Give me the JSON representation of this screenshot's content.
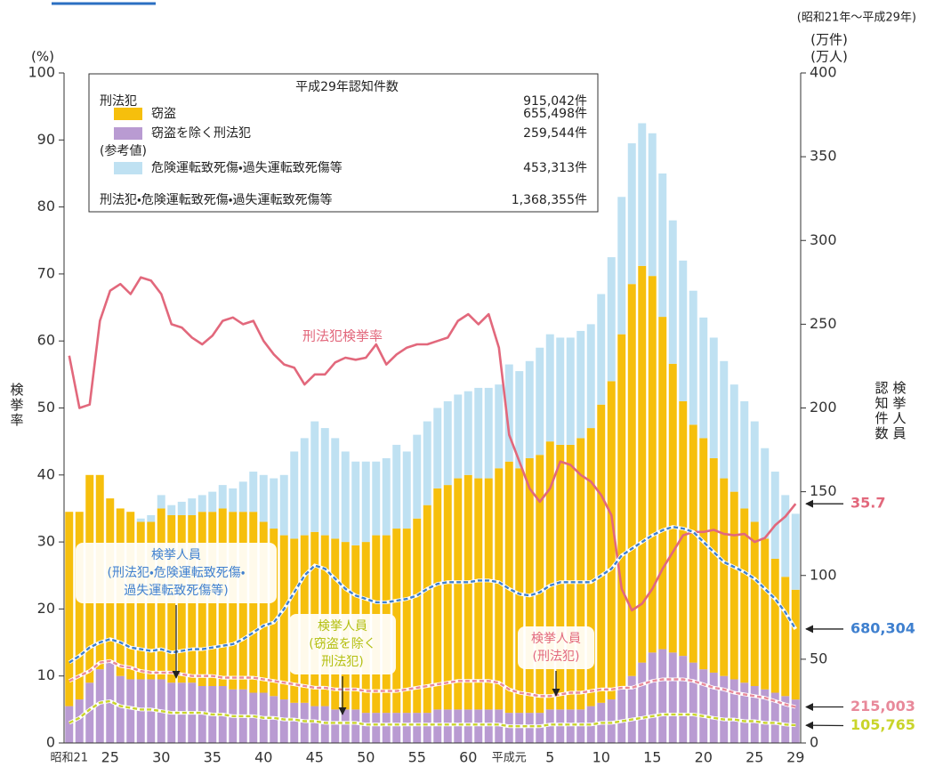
{
  "chart_data": {
    "type": "bar",
    "stacked": true,
    "period": "(昭和21年〜平成29年)",
    "ylabel_unit": "(%)",
    "ylabel": "検挙率",
    "y2label_units": [
      "(万件)",
      "(万人)"
    ],
    "y2labels": [
      "検挙人員",
      "認知件数"
    ],
    "ylim": [
      0,
      100
    ],
    "yticks": [
      0,
      10,
      20,
      30,
      40,
      50,
      60,
      70,
      80,
      90,
      100
    ],
    "y2lim": [
      0,
      400
    ],
    "y2ticks": [
      0,
      50,
      100,
      150,
      200,
      250,
      300,
      350,
      400
    ],
    "categories": [
      "昭和21",
      null,
      null,
      null,
      "25",
      null,
      null,
      null,
      null,
      "30",
      null,
      null,
      null,
      null,
      "35",
      null,
      null,
      null,
      null,
      "40",
      null,
      null,
      null,
      null,
      "45",
      null,
      null,
      null,
      null,
      "50",
      null,
      null,
      null,
      null,
      "55",
      null,
      null,
      null,
      null,
      "60",
      null,
      null,
      null,
      "平成元",
      null,
      null,
      null,
      "5",
      null,
      null,
      null,
      null,
      "10",
      null,
      null,
      null,
      null,
      "15",
      null,
      null,
      null,
      null,
      "20",
      null,
      null,
      null,
      null,
      "25",
      null,
      null,
      null,
      "29"
    ],
    "legend": {
      "title": "平成29年認知件数",
      "total_label": "刑法犯",
      "total_value": "915,042件",
      "reference_label": "(参考値)",
      "grand_label": "刑法犯・危険運転致死傷・過失運転致死傷等",
      "grand_value": "1,368,355件"
    },
    "series": [
      {
        "name": "窃盗",
        "color": "#f6bf0c",
        "axis": "y2",
        "legend_value": "655,498件",
        "values": [
          116,
          112,
          124,
          116,
          98,
          100,
          100,
          94,
          94,
          102,
          100,
          100,
          100,
          104,
          104,
          106,
          106,
          106,
          108,
          102,
          100,
          98,
          98,
          100,
          104,
          102,
          102,
          100,
          98,
          102,
          106,
          106,
          110,
          110,
          116,
          124,
          132,
          134,
          138,
          140,
          138,
          138,
          144,
          150,
          146,
          152,
          154,
          160,
          158,
          158,
          162,
          166,
          178,
          190,
          212,
          234,
          236.8,
          224.8,
          198.4,
          172.4,
          152,
          142,
          138,
          128,
          118,
          112,
          104,
          98,
          90,
          80,
          71.2,
          65.55
        ]
      },
      {
        "name": "窃盗を除く刑法犯",
        "color": "#b99bd2",
        "axis": "y2",
        "legend_value": "259,544件",
        "values": [
          22,
          26,
          36,
          44,
          48,
          40,
          38,
          38,
          38,
          38,
          36,
          36,
          36,
          34,
          34,
          34,
          32,
          32,
          30,
          30,
          28,
          26,
          24,
          24,
          22,
          22,
          20,
          20,
          20,
          18,
          18,
          18,
          18,
          18,
          18,
          18,
          20,
          20,
          20,
          20,
          20,
          20,
          20,
          18,
          18,
          18,
          18,
          20,
          20,
          20,
          20,
          22,
          24,
          26,
          32,
          40,
          48,
          54,
          56,
          54,
          52,
          48,
          44,
          42,
          40,
          38,
          36,
          34,
          32,
          30,
          28,
          25.95
        ]
      },
      {
        "name": "危険運転致死傷・過失運転致死傷等",
        "color": "#bfe1f2",
        "axis": "y2",
        "legend_value": "453,313件",
        "values": [
          0,
          0,
          0,
          0,
          0,
          0,
          0,
          2,
          4,
          8,
          6,
          8,
          10,
          10,
          12,
          14,
          14,
          18,
          24,
          28,
          30,
          36,
          52,
          58,
          66,
          64,
          60,
          54,
          50,
          48,
          44,
          46,
          50,
          46,
          50,
          50,
          48,
          50,
          50,
          50,
          54,
          54,
          50,
          58,
          58,
          58,
          64,
          64,
          64,
          64,
          64,
          62,
          66,
          74,
          82,
          84,
          85.2,
          85.2,
          85.6,
          85.6,
          84,
          80,
          72,
          72,
          70,
          64,
          64,
          60,
          54,
          52,
          48.8,
          45.33
        ]
      },
      {
        "type": "line",
        "name": "刑法犯検挙率",
        "color": "#e2687c",
        "axis": "y",
        "values": [
          57.8,
          50,
          50.5,
          63,
          67.5,
          68.5,
          67,
          69.5,
          69,
          67,
          62.5,
          62,
          60.5,
          59.5,
          60.8,
          63,
          63.5,
          62.5,
          63,
          60,
          58,
          56.5,
          56,
          53.5,
          55,
          55,
          56.8,
          57.5,
          57.2,
          57.5,
          59.5,
          56.5,
          58,
          59,
          59.5,
          59.5,
          60,
          60.5,
          63,
          64,
          62.5,
          64,
          59,
          46,
          42,
          38,
          36,
          38,
          42,
          41.5,
          40,
          39,
          37,
          34,
          23,
          19.8,
          20.8,
          23,
          26,
          28.5,
          31,
          31.5,
          31.5,
          31.8,
          31.2,
          31,
          31.2,
          30,
          30.6,
          32.5,
          33.8,
          35.7
        ]
      },
      {
        "type": "line",
        "dashed": true,
        "color": "#3f80cf",
        "axis": "y2",
        "values": [
          48,
          52,
          57,
          60,
          62,
          60,
          57,
          56,
          55,
          56,
          54,
          55,
          56,
          56,
          57,
          58,
          59,
          62,
          66,
          70,
          72,
          80,
          90,
          100,
          106,
          104,
          98,
          92,
          88,
          86,
          84,
          84,
          85,
          86,
          88,
          92,
          95,
          96,
          96,
          96,
          97,
          97,
          96,
          92,
          89,
          88,
          90,
          94,
          96,
          96,
          96,
          96,
          100,
          104,
          112,
          116,
          120,
          124,
          127,
          129,
          128,
          126,
          120,
          114,
          108,
          105,
          102,
          98,
          92,
          86,
          78,
          68.0304
        ],
        "value_labels": [
          null,
          null,
          null,
          null,
          null,
          null,
          null,
          null,
          null,
          null,
          null,
          null,
          null,
          null,
          null,
          null,
          null,
          null,
          null,
          null,
          null,
          null,
          null,
          null,
          null,
          null,
          null,
          null,
          null,
          null,
          null,
          null,
          null,
          null,
          null,
          null,
          null,
          null,
          null,
          null,
          null,
          null,
          null,
          null,
          null,
          null,
          null,
          null,
          null,
          null,
          null,
          null,
          null,
          null,
          null,
          null,
          null,
          null,
          null,
          null,
          null,
          null,
          null,
          null,
          null,
          null,
          null,
          null,
          null,
          null,
          null,
          "680,304"
        ]
      },
      {
        "type": "line",
        "dashed": true,
        "color": "#e8899a",
        "axis": "y2",
        "values": [
          37,
          40,
          43,
          48,
          49,
          46,
          45,
          43,
          42,
          42,
          42,
          41,
          40,
          40,
          40,
          39,
          39,
          39,
          39,
          38,
          37,
          36,
          35,
          34,
          33,
          33,
          32,
          32,
          32,
          31,
          31,
          31,
          31,
          32,
          33,
          34,
          35,
          36,
          37,
          37,
          37,
          37,
          36,
          32,
          30,
          29,
          28,
          28,
          29,
          30,
          30,
          31,
          32,
          32,
          33,
          33,
          35,
          37,
          38,
          38,
          38,
          37,
          35,
          33,
          32,
          30,
          29,
          28,
          27,
          25,
          23,
          21.5003
        ],
        "value_labels": [
          null,
          null,
          null,
          null,
          null,
          null,
          null,
          null,
          null,
          null,
          null,
          null,
          null,
          null,
          null,
          null,
          null,
          null,
          null,
          null,
          null,
          null,
          null,
          null,
          null,
          null,
          null,
          null,
          null,
          null,
          null,
          null,
          null,
          null,
          null,
          null,
          null,
          null,
          null,
          null,
          null,
          null,
          null,
          null,
          null,
          null,
          null,
          null,
          null,
          null,
          null,
          null,
          null,
          null,
          null,
          null,
          null,
          null,
          null,
          null,
          null,
          null,
          null,
          null,
          null,
          null,
          null,
          null,
          null,
          null,
          null,
          "215,003"
        ]
      },
      {
        "type": "line",
        "dashed": true,
        "color": "#c9d42a",
        "axis": "y2",
        "values": [
          12,
          15,
          20,
          24,
          25,
          22,
          21,
          20,
          20,
          19,
          18,
          18,
          18,
          18,
          17,
          17,
          16,
          16,
          16,
          15,
          15,
          14,
          14,
          13,
          13,
          12,
          12,
          12,
          12,
          11,
          11,
          11,
          11,
          11,
          11,
          11,
          11,
          11,
          11,
          11,
          11,
          11,
          11,
          10,
          10,
          10,
          10,
          11,
          11,
          11,
          11,
          11,
          12,
          12,
          13,
          14,
          15,
          16,
          17,
          17,
          17,
          17,
          16,
          15,
          14,
          14,
          13,
          13,
          12,
          12,
          11,
          10.5765
        ],
        "value_labels": [
          null,
          null,
          null,
          null,
          null,
          null,
          null,
          null,
          null,
          null,
          null,
          null,
          null,
          null,
          null,
          null,
          null,
          null,
          null,
          null,
          null,
          null,
          null,
          null,
          null,
          null,
          null,
          null,
          null,
          null,
          null,
          null,
          null,
          null,
          null,
          null,
          null,
          null,
          null,
          null,
          null,
          null,
          null,
          null,
          null,
          null,
          null,
          null,
          null,
          null,
          null,
          null,
          null,
          null,
          null,
          null,
          null,
          null,
          null,
          null,
          null,
          null,
          null,
          null,
          null,
          null,
          null,
          null,
          null,
          null,
          null,
          "105,765"
        ]
      }
    ],
    "annotations": [
      {
        "lines": [
          "検挙人員",
          "(刑法犯・危険運転致死傷・",
          "過失運転致死傷等)"
        ],
        "color": "#3f80cf"
      },
      {
        "lines": [
          "検挙人員",
          "(窃盗を除く",
          "刑法犯)"
        ],
        "color": "#b3bf10"
      },
      {
        "lines": [
          "検挙人員",
          "(刑法犯)"
        ],
        "color": "#e2687c"
      }
    ]
  }
}
